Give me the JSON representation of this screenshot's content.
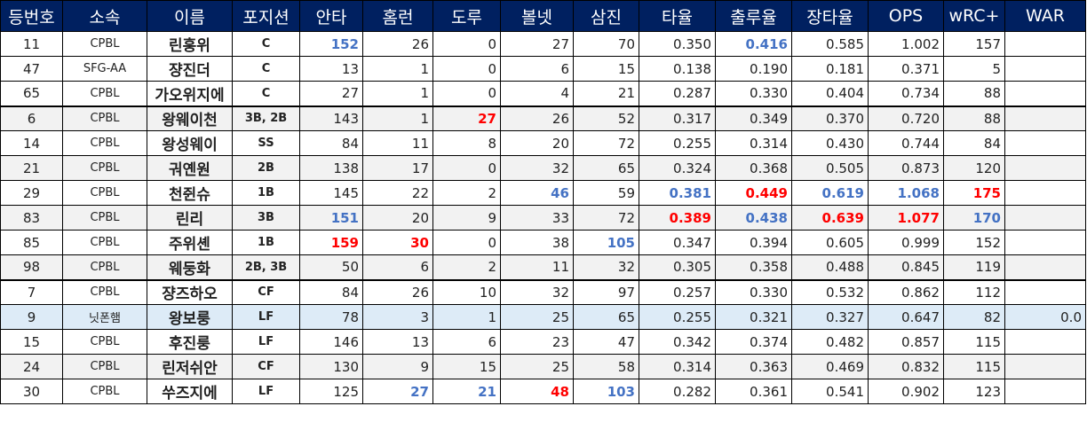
{
  "headers": [
    "등번호",
    "소속",
    "이름",
    "포지션",
    "안타",
    "홈런",
    "도루",
    "볼넷",
    "삼진",
    "타율",
    "출루율",
    "장타율",
    "OPS",
    "wRC+",
    "WAR"
  ],
  "rows": [
    {
      "num": "11",
      "team": "CPBL",
      "name": "린훙위",
      "pos": "C",
      "h": "152",
      "hr": "26",
      "sb": "0",
      "bb": "27",
      "so": "70",
      "avg": "0.350",
      "obp": "0.416",
      "slg": "0.585",
      "ops": "1.002",
      "wrc": "157",
      "war": ""
    },
    {
      "num": "47",
      "team": "SFG-AA",
      "name": "쟝진더",
      "pos": "C",
      "h": "13",
      "hr": "1",
      "sb": "0",
      "bb": "6",
      "so": "15",
      "avg": "0.138",
      "obp": "0.190",
      "slg": "0.181",
      "ops": "0.371",
      "wrc": "5",
      "war": ""
    },
    {
      "num": "65",
      "team": "CPBL",
      "name": "가오위지에",
      "pos": "C",
      "h": "27",
      "hr": "1",
      "sb": "0",
      "bb": "4",
      "so": "21",
      "avg": "0.287",
      "obp": "0.330",
      "slg": "0.404",
      "ops": "0.734",
      "wrc": "88",
      "war": ""
    },
    {
      "num": "6",
      "team": "CPBL",
      "name": "왕웨이천",
      "pos": "3B, 2B",
      "h": "143",
      "hr": "1",
      "sb": "27",
      "bb": "26",
      "so": "52",
      "avg": "0.317",
      "obp": "0.349",
      "slg": "0.370",
      "ops": "0.720",
      "wrc": "88",
      "war": ""
    },
    {
      "num": "14",
      "team": "CPBL",
      "name": "왕성웨이",
      "pos": "SS",
      "h": "84",
      "hr": "11",
      "sb": "8",
      "bb": "20",
      "so": "72",
      "avg": "0.255",
      "obp": "0.314",
      "slg": "0.430",
      "ops": "0.744",
      "wrc": "84",
      "war": ""
    },
    {
      "num": "21",
      "team": "CPBL",
      "name": "궈옌원",
      "pos": "2B",
      "h": "138",
      "hr": "17",
      "sb": "0",
      "bb": "32",
      "so": "65",
      "avg": "0.324",
      "obp": "0.368",
      "slg": "0.505",
      "ops": "0.873",
      "wrc": "120",
      "war": ""
    },
    {
      "num": "29",
      "team": "CPBL",
      "name": "천쥔슈",
      "pos": "1B",
      "h": "145",
      "hr": "22",
      "sb": "2",
      "bb": "46",
      "so": "59",
      "avg": "0.381",
      "obp": "0.449",
      "slg": "0.619",
      "ops": "1.068",
      "wrc": "175",
      "war": ""
    },
    {
      "num": "83",
      "team": "CPBL",
      "name": "린리",
      "pos": "3B",
      "h": "151",
      "hr": "20",
      "sb": "9",
      "bb": "33",
      "so": "72",
      "avg": "0.389",
      "obp": "0.438",
      "slg": "0.639",
      "ops": "1.077",
      "wrc": "170",
      "war": ""
    },
    {
      "num": "85",
      "team": "CPBL",
      "name": "주위셴",
      "pos": "1B",
      "h": "159",
      "hr": "30",
      "sb": "0",
      "bb": "38",
      "so": "105",
      "avg": "0.347",
      "obp": "0.394",
      "slg": "0.605",
      "ops": "0.999",
      "wrc": "152",
      "war": ""
    },
    {
      "num": "98",
      "team": "CPBL",
      "name": "웨둥화",
      "pos": "2B, 3B",
      "h": "50",
      "hr": "6",
      "sb": "2",
      "bb": "11",
      "so": "32",
      "avg": "0.305",
      "obp": "0.358",
      "slg": "0.488",
      "ops": "0.845",
      "wrc": "119",
      "war": ""
    },
    {
      "num": "7",
      "team": "CPBL",
      "name": "쟝즈하오",
      "pos": "CF",
      "h": "84",
      "hr": "26",
      "sb": "10",
      "bb": "32",
      "so": "97",
      "avg": "0.257",
      "obp": "0.330",
      "slg": "0.532",
      "ops": "0.862",
      "wrc": "112",
      "war": ""
    },
    {
      "num": "9",
      "team": "닛폰햄",
      "name": "왕보룽",
      "pos": "LF",
      "h": "78",
      "hr": "3",
      "sb": "1",
      "bb": "25",
      "so": "65",
      "avg": "0.255",
      "obp": "0.321",
      "slg": "0.327",
      "ops": "0.647",
      "wrc": "82",
      "war": "0.0"
    },
    {
      "num": "15",
      "team": "CPBL",
      "name": "후진룽",
      "pos": "LF",
      "h": "146",
      "hr": "13",
      "sb": "6",
      "bb": "23",
      "so": "47",
      "avg": "0.342",
      "obp": "0.374",
      "slg": "0.482",
      "ops": "0.857",
      "wrc": "115",
      "war": ""
    },
    {
      "num": "24",
      "team": "CPBL",
      "name": "린저쉬안",
      "pos": "CF",
      "h": "130",
      "hr": "9",
      "sb": "15",
      "bb": "25",
      "so": "58",
      "avg": "0.314",
      "obp": "0.363",
      "slg": "0.469",
      "ops": "0.832",
      "wrc": "115",
      "war": ""
    },
    {
      "num": "30",
      "team": "CPBL",
      "name": "쑤즈지에",
      "pos": "LF",
      "h": "125",
      "hr": "27",
      "sb": "21",
      "bb": "48",
      "so": "103",
      "avg": "0.282",
      "obp": "0.361",
      "slg": "0.541",
      "ops": "0.902",
      "wrc": "123",
      "war": ""
    }
  ],
  "colors": {
    "header_bg": "#002060",
    "header_text": "#ffffff",
    "highlight_blue": "#4472c4",
    "highlight_red": "#ff0000",
    "selected_row_bg": "#ddebf7",
    "alt_row_bg": "#f2f2f2"
  }
}
